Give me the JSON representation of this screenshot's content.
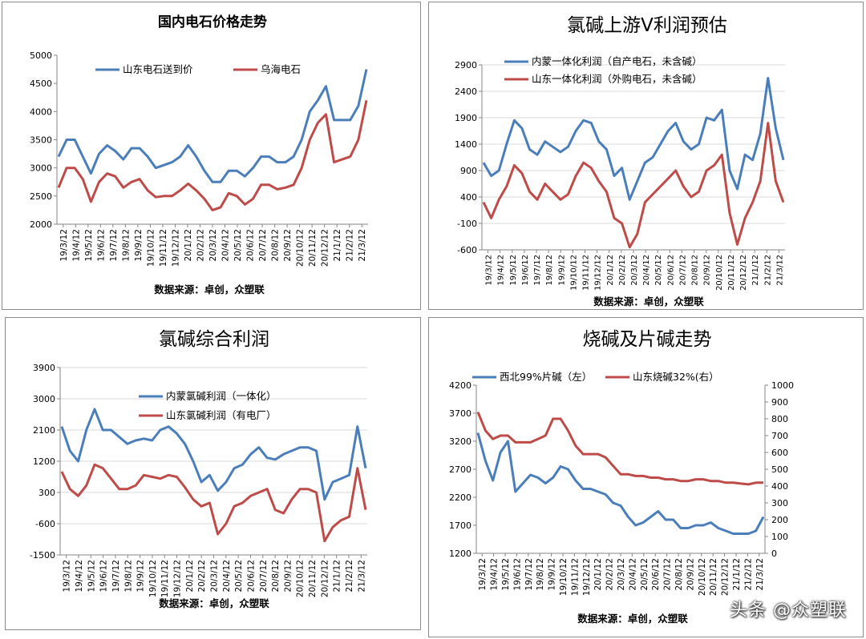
{
  "watermark": "头条 @众塑联",
  "colors": {
    "blue": "#4a7ebb",
    "red": "#be4b48",
    "axis": "#868686",
    "grid": "#d9d9d9"
  },
  "chart_data": [
    {
      "type": "line",
      "title": "国内电石价格走势",
      "source": "数据来源：卓创，众塑联",
      "y_ticks": [
        "5000",
        "4500",
        "4000",
        "3500",
        "3000",
        "2500",
        "2000"
      ],
      "ylim": [
        2000,
        5000
      ],
      "x_ticks": [
        "19/3/12",
        "19/4/12",
        "19/5/12",
        "19/6/12",
        "19/7/12",
        "19/8/12",
        "19/9/12",
        "19/10/12",
        "19/11/12",
        "19/12/12",
        "20/1/12",
        "20/2/12",
        "20/3/12",
        "20/4/12",
        "20/5/12",
        "20/6/12",
        "20/7/12",
        "20/8/12",
        "20/9/12",
        "20/10/12",
        "20/11/12",
        "20/12/12",
        "21/1/12",
        "21/2/12",
        "21/3/12"
      ],
      "series": [
        {
          "name": "山东电石送到价",
          "color": "#4a7ebb",
          "values": [
            3200,
            3500,
            3500,
            3200,
            2900,
            3250,
            3400,
            3300,
            3150,
            3350,
            3350,
            3200,
            3000,
            3050,
            3100,
            3200,
            3400,
            3200,
            2950,
            2750,
            2750,
            2950,
            2950,
            2850,
            3000,
            3200,
            3200,
            3100,
            3100,
            3200,
            3500,
            4000,
            4200,
            4450,
            3850,
            3850,
            3850,
            4100,
            4750
          ]
        },
        {
          "name": "乌海电石",
          "color": "#be4b48",
          "values": [
            2650,
            3000,
            3000,
            2800,
            2400,
            2750,
            2900,
            2850,
            2650,
            2750,
            2800,
            2600,
            2480,
            2500,
            2500,
            2600,
            2720,
            2600,
            2450,
            2250,
            2300,
            2550,
            2500,
            2350,
            2450,
            2700,
            2700,
            2620,
            2650,
            2700,
            3000,
            3500,
            3800,
            3950,
            3100,
            3150,
            3200,
            3500,
            4200
          ]
        }
      ]
    },
    {
      "type": "line",
      "title": "氯碱上游V利润预估",
      "source": "数据来源：卓创，众塑联",
      "y_ticks": [
        "2900",
        "2400",
        "1900",
        "1400",
        "900",
        "400",
        "-100",
        "-600"
      ],
      "ylim": [
        -600,
        2900
      ],
      "x_ticks": [
        "19/3/12",
        "19/4/12",
        "19/5/12",
        "19/6/12",
        "19/7/12",
        "19/8/12",
        "19/9/12",
        "19/10/12",
        "19/11/12",
        "19/12/12",
        "20/1/12",
        "20/2/12",
        "20/3/12",
        "20/4/12",
        "20/5/12",
        "20/6/12",
        "20/7/12",
        "20/8/12",
        "20/9/12",
        "20/10/12",
        "20/11/12",
        "20/12/12",
        "21/1/12",
        "21/2/12",
        "21/3/12"
      ],
      "series": [
        {
          "name": "内蒙一体化利润（自产电石，未含碱）",
          "color": "#4a7ebb",
          "values": [
            1050,
            800,
            900,
            1400,
            1850,
            1700,
            1300,
            1200,
            1450,
            1350,
            1250,
            1350,
            1650,
            1850,
            1800,
            1450,
            1300,
            800,
            950,
            350,
            700,
            1050,
            1150,
            1400,
            1650,
            1800,
            1450,
            1300,
            1400,
            1900,
            1850,
            2050,
            900,
            550,
            1200,
            1100,
            1600,
            2650,
            1700,
            1100
          ]
        },
        {
          "name": "山东一体化利润（外购电石，未含碱）",
          "color": "#be4b48",
          "values": [
            300,
            0,
            350,
            600,
            1000,
            850,
            500,
            350,
            650,
            500,
            350,
            450,
            800,
            1050,
            950,
            700,
            500,
            0,
            -100,
            -550,
            -300,
            300,
            450,
            600,
            750,
            900,
            600,
            400,
            500,
            900,
            1000,
            1200,
            100,
            -500,
            0,
            300,
            700,
            1800,
            700,
            300
          ]
        }
      ]
    },
    {
      "type": "line",
      "title": "氯碱综合利润",
      "source": "数据来源：卓创，众塑联",
      "y_ticks": [
        "3900",
        "3000",
        "2100",
        "1200",
        "300",
        "-600",
        "-1500"
      ],
      "ylim": [
        -1500,
        3900
      ],
      "x_ticks": [
        "19/3/12",
        "19/4/12",
        "19/5/12",
        "19/6/12",
        "19/7/12",
        "19/8/12",
        "19/9/12",
        "19/10/12",
        "19/11/12",
        "19/12/12",
        "20/1/12",
        "20/2/12",
        "20/3/12",
        "20/4/12",
        "20/5/12",
        "20/6/12",
        "20/7/12",
        "20/8/12",
        "20/9/12",
        "20/10/12",
        "20/11/12",
        "20/12/12",
        "21/1/12",
        "21/2/12",
        "21/3/12"
      ],
      "series": [
        {
          "name": "内蒙氯碱利润（一体化）",
          "color": "#4a7ebb",
          "values": [
            2200,
            1500,
            1200,
            2100,
            2700,
            2100,
            2100,
            1900,
            1700,
            1800,
            1850,
            1800,
            2100,
            2200,
            2000,
            1700,
            1200,
            600,
            800,
            350,
            600,
            1000,
            1100,
            1400,
            1600,
            1300,
            1250,
            1400,
            1500,
            1600,
            1600,
            1500,
            100,
            600,
            700,
            800,
            2200,
            1000
          ]
        },
        {
          "name": "山东氯碱利润（有电厂）",
          "color": "#be4b48",
          "values": [
            900,
            400,
            200,
            500,
            1100,
            1000,
            700,
            400,
            400,
            500,
            800,
            750,
            700,
            800,
            750,
            450,
            100,
            -100,
            0,
            -900,
            -600,
            -100,
            0,
            200,
            300,
            400,
            -200,
            -300,
            100,
            400,
            400,
            300,
            -1100,
            -700,
            -500,
            -400,
            1000,
            -200
          ]
        }
      ]
    },
    {
      "type": "line",
      "title": "烧碱及片碱走势",
      "source": "数据来源：卓创，众塑联",
      "y_ticks": [
        "4200",
        "3700",
        "3200",
        "2700",
        "2200",
        "1700",
        "1200"
      ],
      "ylim": [
        1200,
        4200
      ],
      "y2_ticks": [
        "1000",
        "900",
        "800",
        "700",
        "600",
        "500",
        "400",
        "300",
        "200",
        "100",
        "0"
      ],
      "y2lim": [
        0,
        1000
      ],
      "x_ticks": [
        "19/3/12",
        "19/4/12",
        "19/5/12",
        "19/6/12",
        "19/7/12",
        "19/8/12",
        "19/9/12",
        "19/10/12",
        "19/11/12",
        "19/12/12",
        "20/1/12",
        "20/2/12",
        "20/3/12",
        "20/4/12",
        "20/5/12",
        "20/6/12",
        "20/7/12",
        "20/8/12",
        "20/9/12",
        "20/10/12",
        "20/11/12",
        "20/12/12",
        "21/1/12",
        "21/2/12",
        "21/3/12"
      ],
      "series": [
        {
          "name": "西北99%片碱（左）",
          "color": "#4a7ebb",
          "axis": "left",
          "values": [
            3350,
            2850,
            2500,
            3000,
            3200,
            2300,
            2450,
            2600,
            2550,
            2450,
            2550,
            2750,
            2700,
            2500,
            2350,
            2350,
            2300,
            2250,
            2100,
            2050,
            1850,
            1700,
            1750,
            1850,
            1950,
            1800,
            1800,
            1650,
            1650,
            1700,
            1700,
            1750,
            1650,
            1600,
            1550,
            1550,
            1550,
            1600,
            1850
          ]
        },
        {
          "name": "山东烧碱32%(右）",
          "color": "#be4b48",
          "axis": "right",
          "values": [
            840,
            730,
            680,
            700,
            700,
            660,
            660,
            660,
            680,
            700,
            800,
            800,
            730,
            640,
            590,
            590,
            590,
            570,
            520,
            470,
            470,
            460,
            460,
            450,
            450,
            440,
            440,
            430,
            430,
            440,
            440,
            430,
            430,
            420,
            420,
            415,
            410,
            420,
            420
          ]
        }
      ]
    }
  ]
}
